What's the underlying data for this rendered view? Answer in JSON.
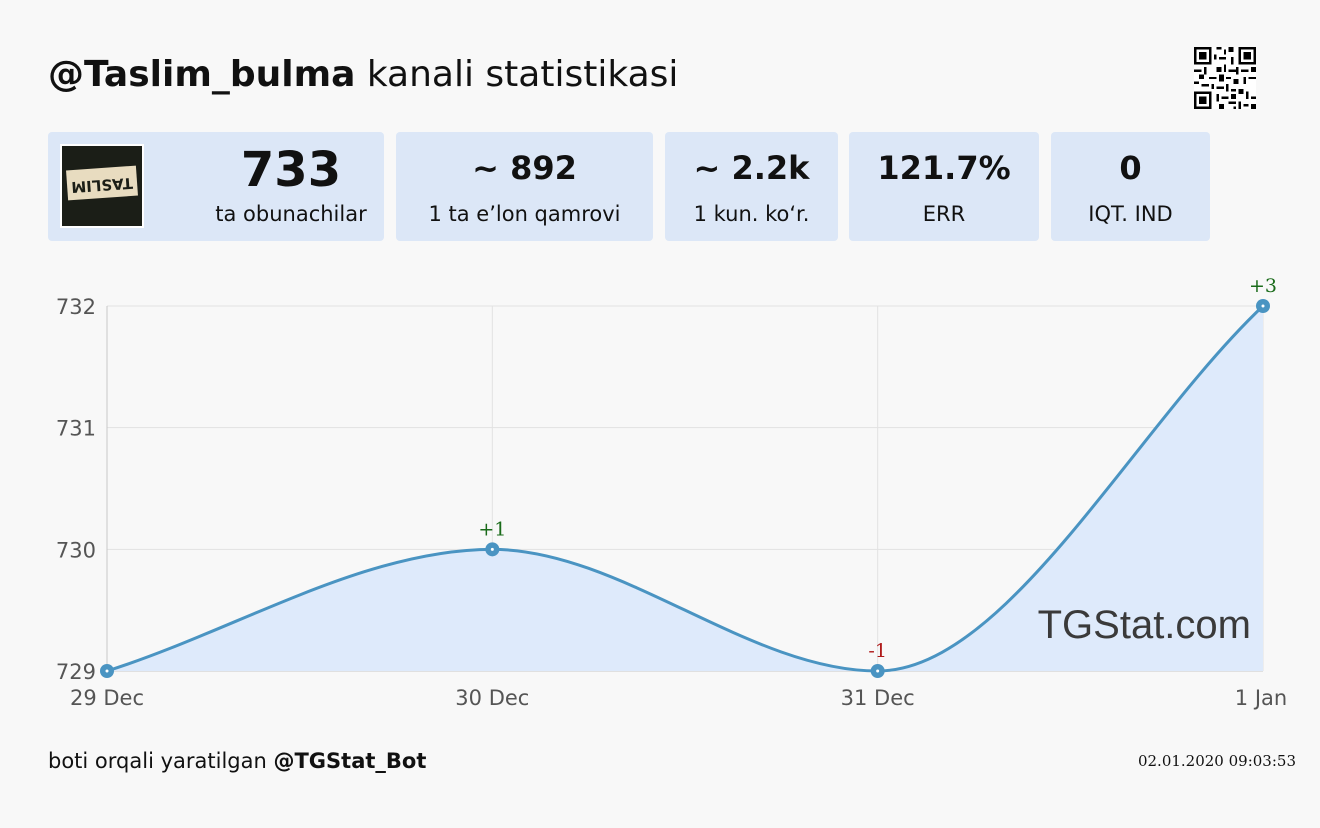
{
  "header": {
    "channel": "@Taslim_bulma",
    "suffix": "kanali statistikasi"
  },
  "stats": [
    {
      "value": "733",
      "label": "ta obunachilar"
    },
    {
      "value": "~ 892",
      "label": "1 ta e’lon qamrovi"
    },
    {
      "value": "~ 2.2k",
      "label": "1 kun. ko‘r."
    },
    {
      "value": "121.7%",
      "label": "ERR"
    },
    {
      "value": "0",
      "label": "IQT. IND"
    }
  ],
  "avatar_text": "TASLIM",
  "chart_data": {
    "type": "area",
    "categories": [
      "29 Dec",
      "30 Dec",
      "31 Dec",
      "1 Jan"
    ],
    "values": [
      729,
      730,
      729,
      732
    ],
    "point_labels": [
      "",
      "+1",
      "-1",
      "+3"
    ],
    "y_ticks": [
      "729",
      "730",
      "731",
      "732"
    ],
    "ylim": [
      729,
      732
    ],
    "watermark": "TGStat.com",
    "line_color": "#4a94c2",
    "fill_color": "#deeafb",
    "positive_color": "#1a6b1a",
    "negative_color": "#b01b1b"
  },
  "footer": {
    "prefix": "boti orqali yaratilgan",
    "bot": "@TGStat_Bot",
    "timestamp": "02.01.2020 09:03:53"
  }
}
